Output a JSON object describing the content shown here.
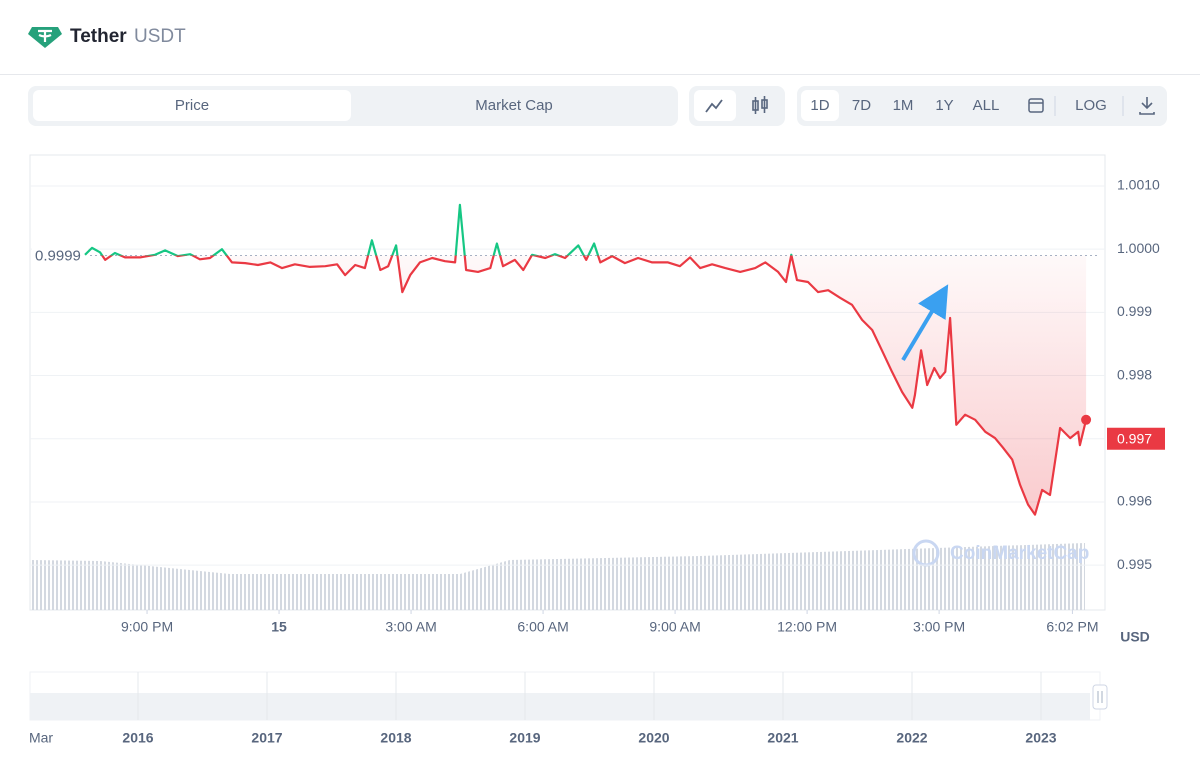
{
  "header": {
    "name": "Tether",
    "symbol": "USDT"
  },
  "tabs": [
    "Price",
    "Market Cap"
  ],
  "ranges": [
    "1D",
    "7D",
    "1M",
    "1Y",
    "ALL"
  ],
  "scale_button": "LOG",
  "chart_data": {
    "type": "line",
    "x": [
      19.59,
      19.75,
      19.93,
      20.05,
      20.27,
      20.5,
      20.84,
      21.18,
      21.41,
      21.7,
      21.98,
      22.2,
      22.43,
      22.7,
      22.93,
      23.23,
      23.52,
      23.8,
      24.07,
      24.36,
      24.7,
      25.05,
      25.32,
      25.5,
      25.73,
      25.95,
      26.11,
      26.3,
      26.48,
      26.66,
      26.8,
      26.98,
      27.2,
      27.48,
      27.77,
      28.0,
      28.11,
      28.25,
      28.52,
      28.8,
      28.95,
      29.09,
      29.36,
      29.55,
      29.75,
      30.05,
      30.27,
      30.5,
      30.8,
      30.98,
      31.16,
      31.3,
      31.57,
      31.86,
      32.16,
      32.48,
      32.84,
      33.11,
      33.34,
      33.57,
      33.84,
      34.14,
      34.48,
      34.82,
      35.05,
      35.34,
      35.52,
      35.64,
      35.77,
      36.02,
      36.25,
      36.48,
      36.75,
      37.02,
      37.25,
      37.48,
      37.7,
      37.93,
      38.16,
      38.39,
      38.45,
      38.59,
      38.73,
      38.89,
      39.02,
      39.14,
      39.25,
      39.39,
      39.59,
      39.82,
      40.05,
      40.27,
      40.45,
      40.66,
      40.84,
      41.02,
      41.18,
      41.34,
      41.52,
      41.75,
      41.98,
      42.16,
      42.2,
      42.34
    ],
    "values": [
      0.99991,
      1.00002,
      0.99995,
      0.99983,
      0.99994,
      0.99987,
      0.99987,
      0.99991,
      0.99998,
      0.99989,
      0.99992,
      0.99984,
      0.99986,
      1.0,
      0.99979,
      0.99978,
      0.99975,
      0.99979,
      0.9997,
      0.99976,
      0.99972,
      0.99973,
      0.99976,
      0.99959,
      0.99975,
      0.9997,
      1.00014,
      0.99967,
      0.99973,
      1.00006,
      0.99932,
      0.99959,
      0.99979,
      0.99986,
      0.99981,
      0.99979,
      1.0007,
      0.99967,
      0.99964,
      0.9997,
      1.00009,
      0.99973,
      0.99983,
      0.99967,
      0.99991,
      0.99986,
      0.99992,
      0.99986,
      1.00006,
      0.99983,
      1.00009,
      0.99979,
      0.99989,
      0.99978,
      0.99986,
      0.99979,
      0.99979,
      0.99973,
      0.99987,
      0.9997,
      0.99976,
      0.9997,
      0.99964,
      0.9997,
      0.99979,
      0.99964,
      0.99948,
      0.99991,
      0.99951,
      0.99948,
      0.99932,
      0.99935,
      0.99923,
      0.99912,
      0.99888,
      0.99872,
      0.9984,
      0.99806,
      0.99774,
      0.99749,
      0.99769,
      0.9984,
      0.99785,
      0.99812,
      0.99796,
      0.99806,
      0.99891,
      0.99722,
      0.99738,
      0.9973,
      0.99711,
      0.99701,
      0.99686,
      0.99667,
      0.99627,
      0.99596,
      0.9958,
      0.99619,
      0.99611,
      0.99717,
      0.99701,
      0.99711,
      0.9969,
      0.9973
    ],
    "colors": {
      "up": "#16c784",
      "down": "#ea3943"
    },
    "reference_value": 0.9999,
    "last_value": 0.997,
    "xlim": [
      18.34,
      42.77
    ],
    "xticks": [
      {
        "value": 21,
        "label": "9:00 PM"
      },
      {
        "value": 24,
        "label": "15"
      },
      {
        "value": 27,
        "label": "3:00 AM"
      },
      {
        "value": 30,
        "label": "6:00 AM"
      },
      {
        "value": 33,
        "label": "9:00 AM"
      },
      {
        "value": 36,
        "label": "12:00 PM"
      },
      {
        "value": 39,
        "label": "3:00 PM"
      },
      {
        "value": 42.03,
        "label": "6:02 PM"
      }
    ],
    "ylim": [
      0.99429,
      1.00149
    ],
    "yticks": [
      0.995,
      0.996,
      0.997,
      0.998,
      0.999,
      {
        "value": 1.0,
        "label": "1.0000"
      },
      {
        "value": 1.001,
        "label": "1.0010"
      }
    ],
    "grid": true,
    "y_unit": "USD",
    "watermark": "CoinMarketCap"
  },
  "navigator": {
    "labels": [
      "Mar",
      "2016",
      "2017",
      "2018",
      "2019",
      "2020",
      "2021",
      "2022",
      "2023"
    ]
  }
}
